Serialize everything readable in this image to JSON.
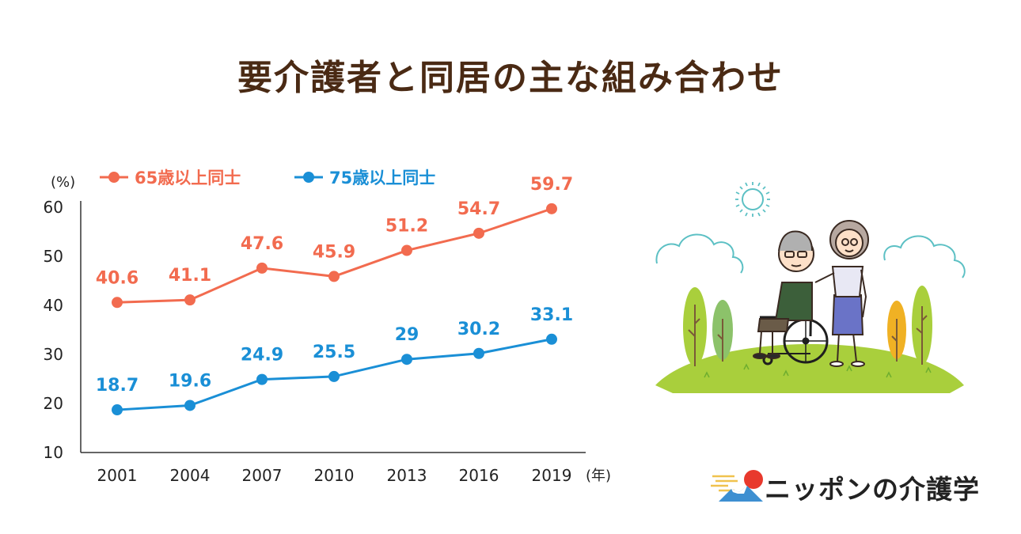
{
  "title": "要介護者と同居の主な組み合わせ",
  "colors": {
    "title": "#4a2a14",
    "series_65": "#f26b4f",
    "series_75": "#1a8fd6",
    "axis_text": "#222222",
    "logo_sun": "#e8392d",
    "logo_mountain": "#3d8fd1",
    "logo_stripes": "#f0c24e"
  },
  "logo": {
    "text": "ニッポンの介護学"
  },
  "chart_data": {
    "type": "line",
    "title": "要介護者と同居の主な組み合わせ",
    "xlabel": "(年)",
    "ylabel": "(%)",
    "ylim": [
      10,
      60
    ],
    "yticks": [
      10,
      20,
      30,
      40,
      50,
      60
    ],
    "categories": [
      "2001",
      "2004",
      "2007",
      "2010",
      "2013",
      "2016",
      "2019"
    ],
    "series": [
      {
        "name": "65歳以上同士",
        "values": [
          40.6,
          41.1,
          47.6,
          45.9,
          51.2,
          54.7,
          59.7
        ],
        "labels": [
          "40.6",
          "41.1",
          "47.6",
          "45.9",
          "51.2",
          "54.7",
          "59.7"
        ]
      },
      {
        "name": "75歳以上同士",
        "values": [
          18.7,
          19.6,
          24.9,
          25.5,
          29,
          30.2,
          33.1
        ],
        "labels": [
          "18.7",
          "19.6",
          "24.9",
          "25.5",
          "29",
          "30.2",
          "33.1"
        ]
      }
    ],
    "legend_position": "top-left",
    "grid": false
  }
}
